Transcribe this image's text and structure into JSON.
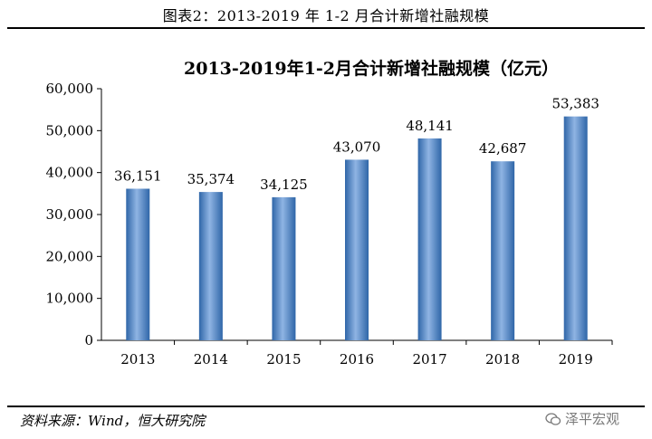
{
  "caption": "图表2：2013-2019 年 1-2 月合计新增社融规模",
  "source": "资料来源：Wind，恒大研究院",
  "watermark": "泽平宏观",
  "colors": {
    "bar_light": "#8fb4e3",
    "bar_dark": "#2f66a8",
    "axis": "#000000"
  },
  "chart_data": {
    "type": "bar",
    "title": "2013-2019年1-2月合计新增社融规模（亿元）",
    "categories": [
      "2013",
      "2014",
      "2015",
      "2016",
      "2017",
      "2018",
      "2019"
    ],
    "values": [
      36151,
      35374,
      34125,
      43070,
      48141,
      42687,
      53383
    ],
    "value_labels": [
      "36,151",
      "35,374",
      "34,125",
      "43,070",
      "48,141",
      "42,687",
      "53,383"
    ],
    "ylim": [
      0,
      60000
    ],
    "yticks": [
      0,
      10000,
      20000,
      30000,
      40000,
      50000,
      60000
    ],
    "ytick_labels": [
      "0",
      "10,000",
      "20,000",
      "30,000",
      "40,000",
      "50,000",
      "60,000"
    ],
    "xlabel": "",
    "ylabel": "",
    "grid": false,
    "legend": false
  }
}
